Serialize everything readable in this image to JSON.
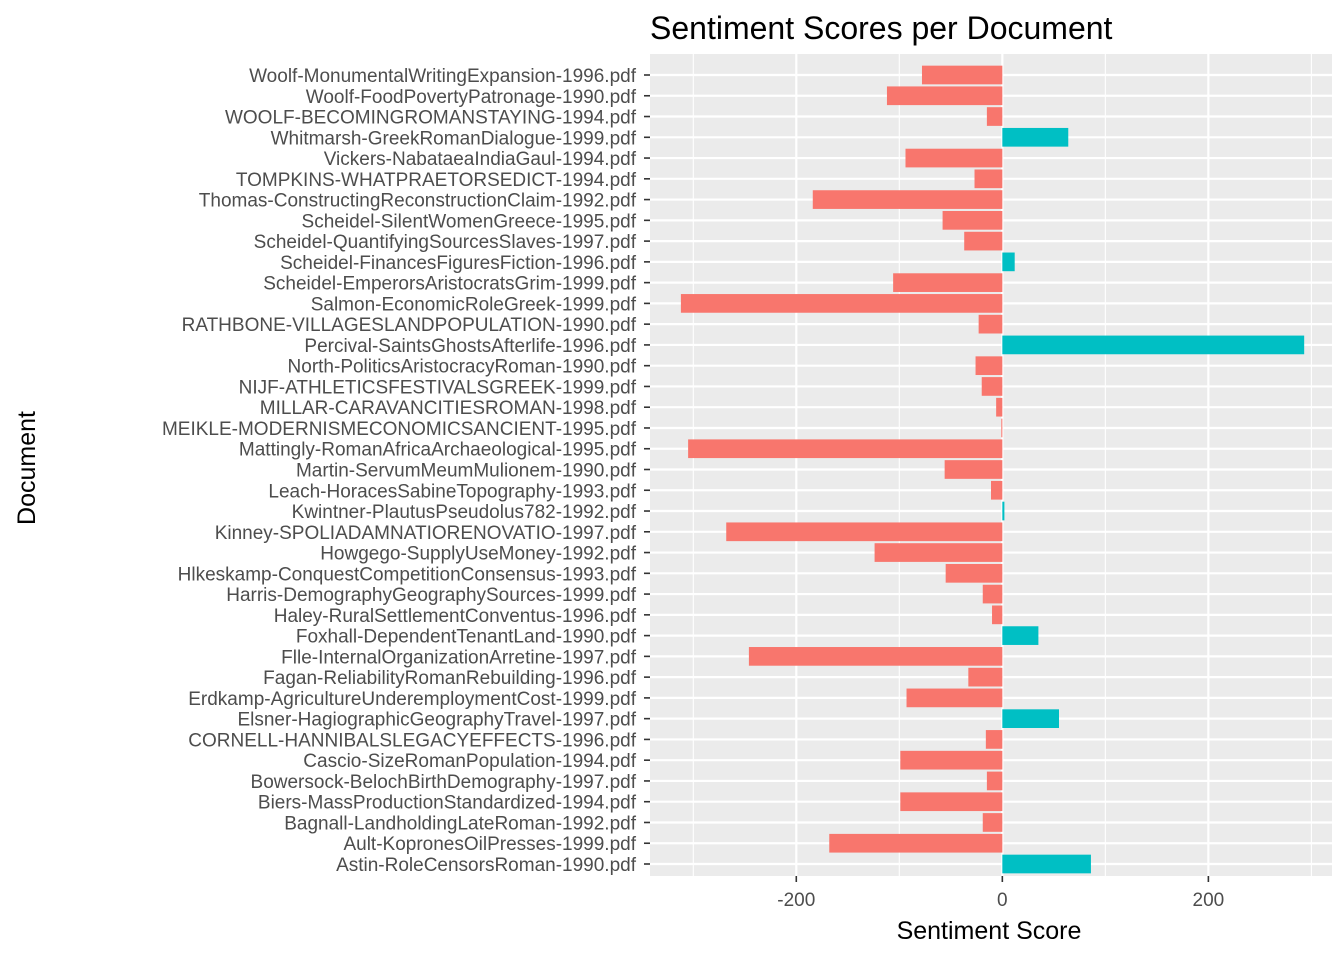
{
  "chart_data": {
    "type": "bar",
    "orientation": "horizontal",
    "title": "Sentiment Scores per Document",
    "xlabel": "Sentiment Score",
    "ylabel": "Document",
    "xlim": [
      -342,
      320
    ],
    "x_ticks": [
      -200,
      0,
      200
    ],
    "x_tick_labels": [
      "-200",
      "0",
      "200"
    ],
    "grid": true,
    "legend": "none",
    "colors": {
      "negative": "#F8766D",
      "positive": "#00BFC4",
      "panel": "#EBEBEB",
      "grid": "#FFFFFF"
    },
    "categories": [
      "Woolf-MonumentalWritingExpansion-1996.pdf",
      "Woolf-FoodPovertyPatronage-1990.pdf",
      "WOOLF-BECOMINGROMANSTAYING-1994.pdf",
      "Whitmarsh-GreekRomanDialogue-1999.pdf",
      "Vickers-NabataeaIndiaGaul-1994.pdf",
      "TOMPKINS-WHATPRAETORSEDICT-1994.pdf",
      "Thomas-ConstructingReconstructionClaim-1992.pdf",
      "Scheidel-SilentWomenGreece-1995.pdf",
      "Scheidel-QuantifyingSourcesSlaves-1997.pdf",
      "Scheidel-FinancesFiguresFiction-1996.pdf",
      "Scheidel-EmperorsAristocratsGrim-1999.pdf",
      "Salmon-EconomicRoleGreek-1999.pdf",
      "RATHBONE-VILLAGESLANDPOPULATION-1990.pdf",
      "Percival-SaintsGhostsAfterlife-1996.pdf",
      "North-PoliticsAristocracyRoman-1990.pdf",
      "NIJF-ATHLETICSFESTIVALSGREEK-1999.pdf",
      "MILLAR-CARAVANCITIESROMAN-1998.pdf",
      "MEIKLE-MODERNISMECONOMICSANCIENT-1995.pdf",
      "Mattingly-RomanAfricaArchaeological-1995.pdf",
      "Martin-ServumMeumMulionem-1990.pdf",
      "Leach-HoracesSabineTopography-1993.pdf",
      "Kwintner-PlautusPseudolus782-1992.pdf",
      "Kinney-SPOLIADAMNATIORENOVATIO-1997.pdf",
      "Howgego-SupplyUseMoney-1992.pdf",
      "Hlkeskamp-ConquestCompetitionConsensus-1993.pdf",
      "Harris-DemographyGeographySources-1999.pdf",
      "Haley-RuralSettlementConventus-1996.pdf",
      "Foxhall-DependentTenantLand-1990.pdf",
      "Flle-InternalOrganizationArretine-1997.pdf",
      "Fagan-ReliabilityRomanRebuilding-1996.pdf",
      "Erdkamp-AgricultureUnderemploymentCost-1999.pdf",
      "Elsner-HagiographicGeographyTravel-1997.pdf",
      "CORNELL-HANNIBALSLEGACYEFFECTS-1996.pdf",
      "Cascio-SizeRomanPopulation-1994.pdf",
      "Bowersock-BelochBirthDemography-1997.pdf",
      "Biers-MassProductionStandardized-1994.pdf",
      "Bagnall-LandholdingLateRoman-1992.pdf",
      "Ault-KopronesOilPresses-1999.pdf",
      "Astin-RoleCensorsRoman-1990.pdf"
    ],
    "values": [
      -78,
      -112,
      -15,
      64,
      -94,
      -27,
      -184,
      -58,
      -37,
      12,
      -106,
      -312,
      -23,
      293,
      -26,
      -20,
      -6,
      -1,
      -305,
      -56,
      -11,
      2,
      -268,
      -124,
      -55,
      -19,
      -10,
      35,
      -246,
      -33,
      -93,
      55,
      -16,
      -99,
      -15,
      -99,
      -19,
      -168,
      86
    ]
  }
}
